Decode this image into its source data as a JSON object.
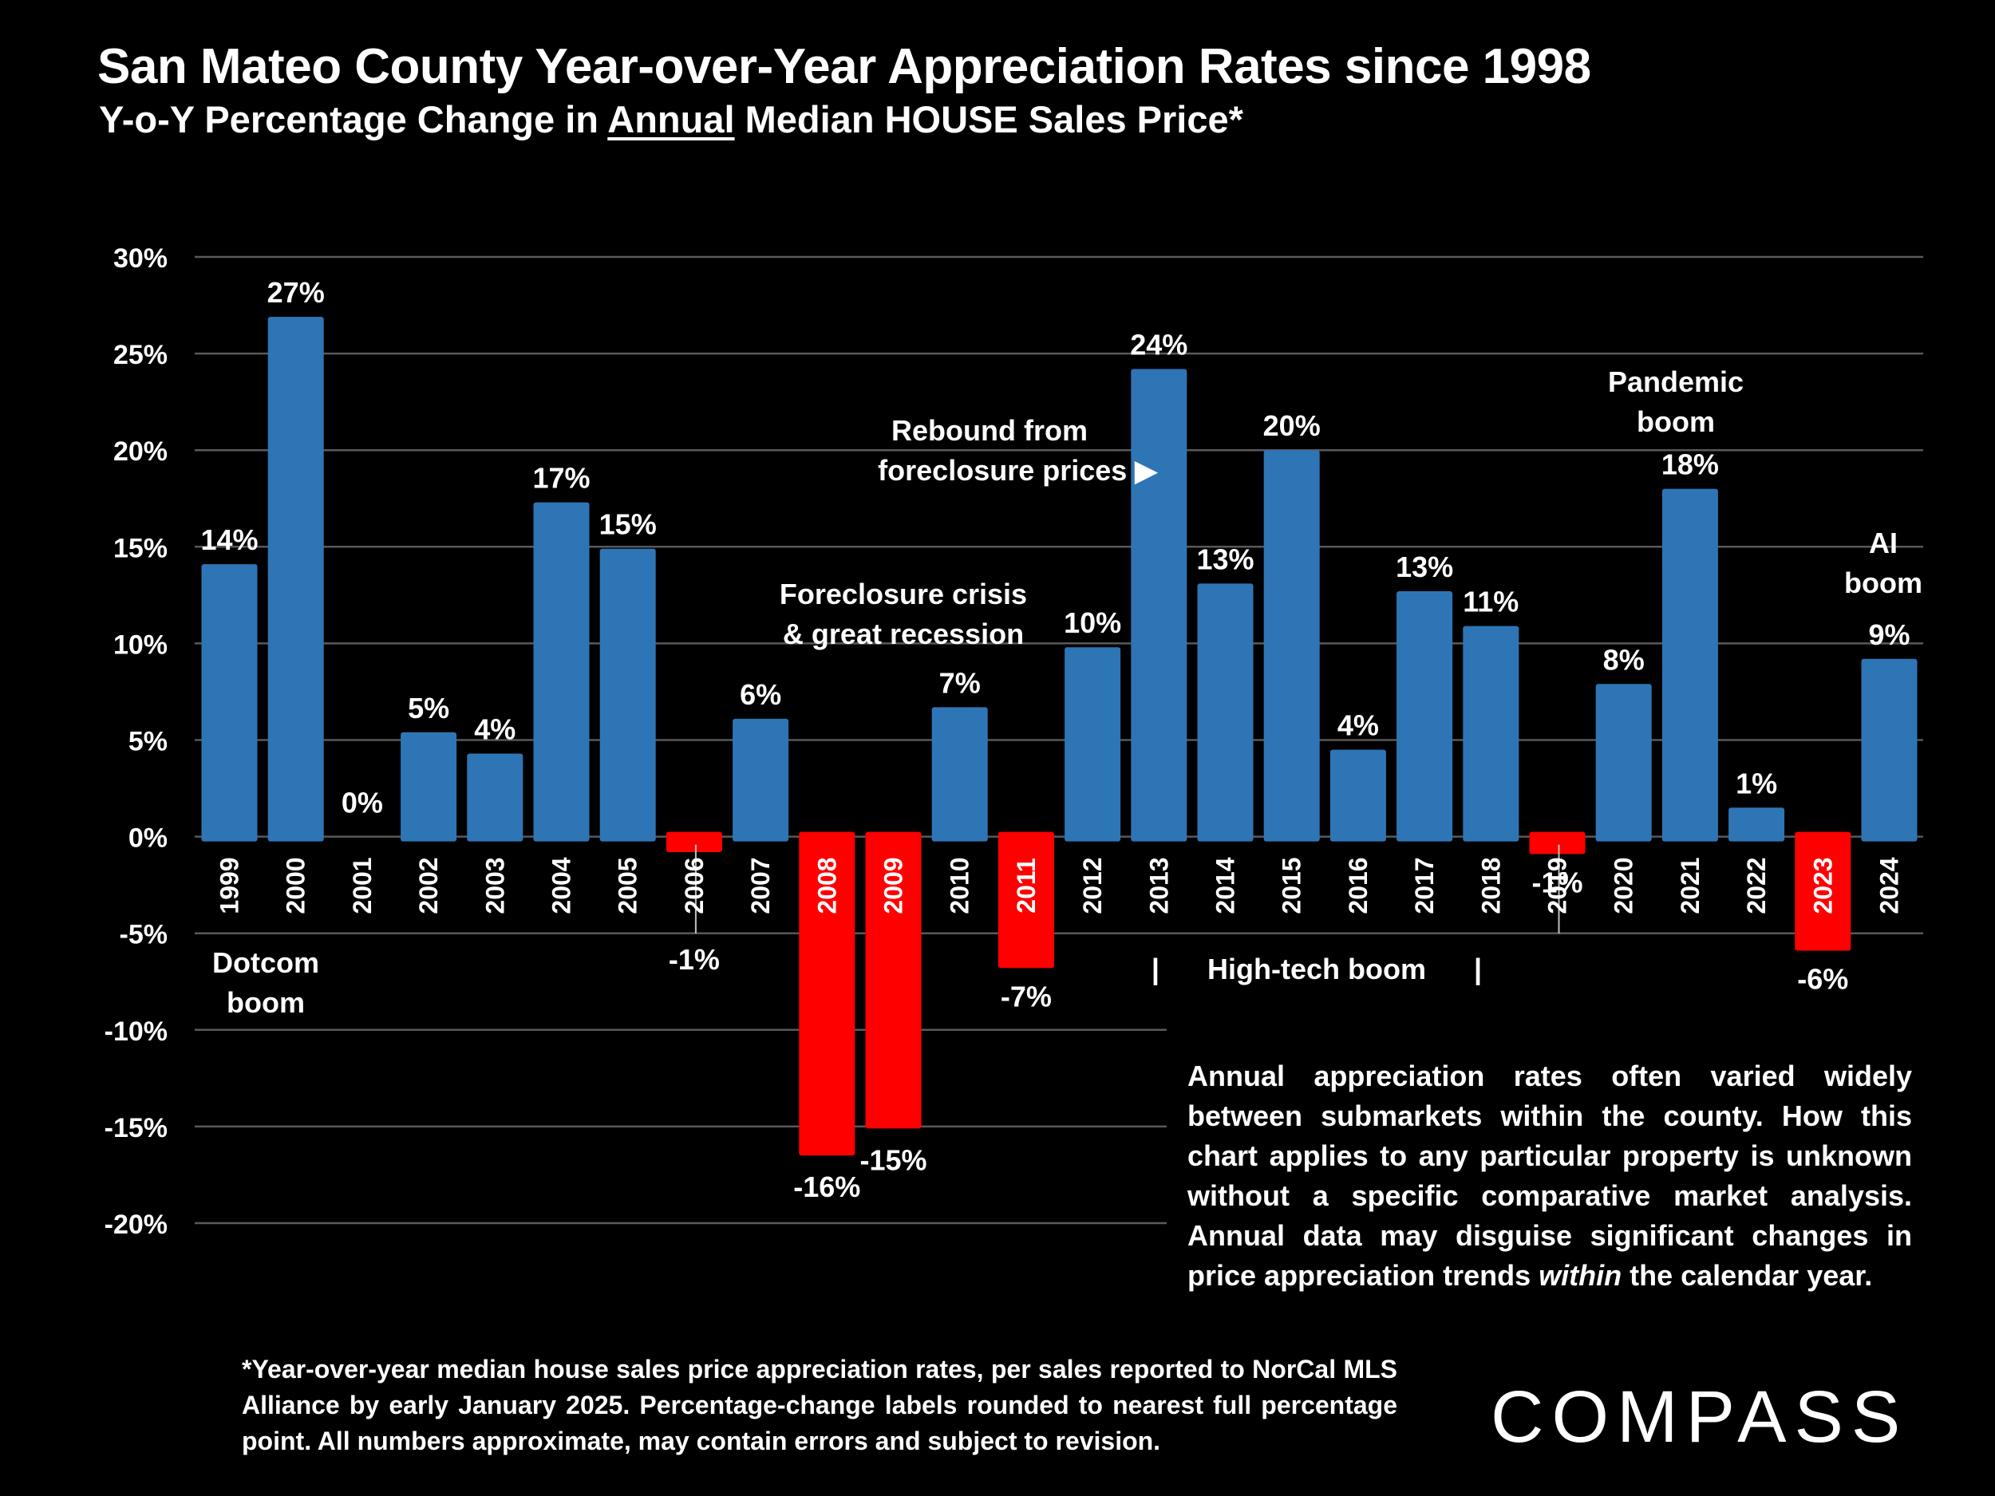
{
  "title": "San Mateo County Year-over-Year Appreciation Rates since 1998",
  "subtitle": {
    "before": "Y-o-Y Percentage Change in ",
    "underlined": "Annual",
    "after": " Median HOUSE Sales Price*"
  },
  "chart_data": {
    "type": "bar",
    "categories": [
      "1999",
      "2000",
      "2001",
      "2002",
      "2003",
      "2004",
      "2005",
      "2006",
      "2007",
      "2008",
      "2009",
      "2010",
      "2011",
      "2012",
      "2013",
      "2014",
      "2015",
      "2016",
      "2017",
      "2018",
      "2019",
      "2020",
      "2021",
      "2022",
      "2023",
      "2024"
    ],
    "values": [
      14.1,
      26.9,
      0.0,
      5.4,
      4.3,
      17.3,
      14.9,
      -0.8,
      6.1,
      -16.5,
      -15.1,
      6.7,
      -6.8,
      9.8,
      24.2,
      13.1,
      20.0,
      4.5,
      12.7,
      10.9,
      -0.9,
      7.9,
      18.0,
      1.5,
      -5.9,
      9.2
    ],
    "labels": [
      "14%",
      "27%",
      "0%",
      "5%",
      "4%",
      "17%",
      "15%",
      "-1%",
      "6%",
      "-16%",
      "-15%",
      "7%",
      "-7%",
      "10%",
      "24%",
      "13%",
      "20%",
      "4%",
      "13%",
      "11%",
      "-1%",
      "8%",
      "18%",
      "1%",
      "-6%",
      "9%"
    ],
    "colors": {
      "positive": "#2E75B6",
      "negative": "#FF0000",
      "background": "#000000",
      "grid": "#595959",
      "text": "#FFFFFF"
    },
    "ylim": [
      -20,
      30
    ],
    "yticks": [
      30,
      25,
      20,
      15,
      10,
      5,
      0,
      -5,
      -10,
      -15,
      -20
    ],
    "ytick_labels": [
      "30%",
      "25%",
      "20%",
      "15%",
      "10%",
      "5%",
      "0%",
      "-5%",
      "-10%",
      "-15%",
      "-20%"
    ],
    "xlabel": "",
    "ylabel": "",
    "grid": true,
    "legend": "none"
  },
  "annotations": {
    "dotcom": [
      "Dotcom",
      "boom"
    ],
    "foreclosure": [
      "Foreclosure crisis",
      "& great recession"
    ],
    "rebound": [
      "Rebound from",
      "foreclosure  prices ▶"
    ],
    "hightech": "|      High-tech boom      |",
    "pandemic": [
      "Pandemic",
      "boom"
    ],
    "ai": [
      "AI",
      "boom"
    ]
  },
  "note": {
    "part1": "Annual appreciation rates often varied widely between submarkets within the county. How this chart applies to any particular property is unknown without a specific comparative market analysis. Annual data may disguise significant changes in price appreciation trends ",
    "italic": "within",
    "part2": " the calendar year."
  },
  "footnote": "*Year-over-year median house sales price appreciation rates, per sales reported to NorCal MLS Alliance by early January 2025. Percentage-change labels rounded to nearest full percentage point. All numbers approximate, may contain errors and subject to revision.",
  "logo": "COMPASS"
}
